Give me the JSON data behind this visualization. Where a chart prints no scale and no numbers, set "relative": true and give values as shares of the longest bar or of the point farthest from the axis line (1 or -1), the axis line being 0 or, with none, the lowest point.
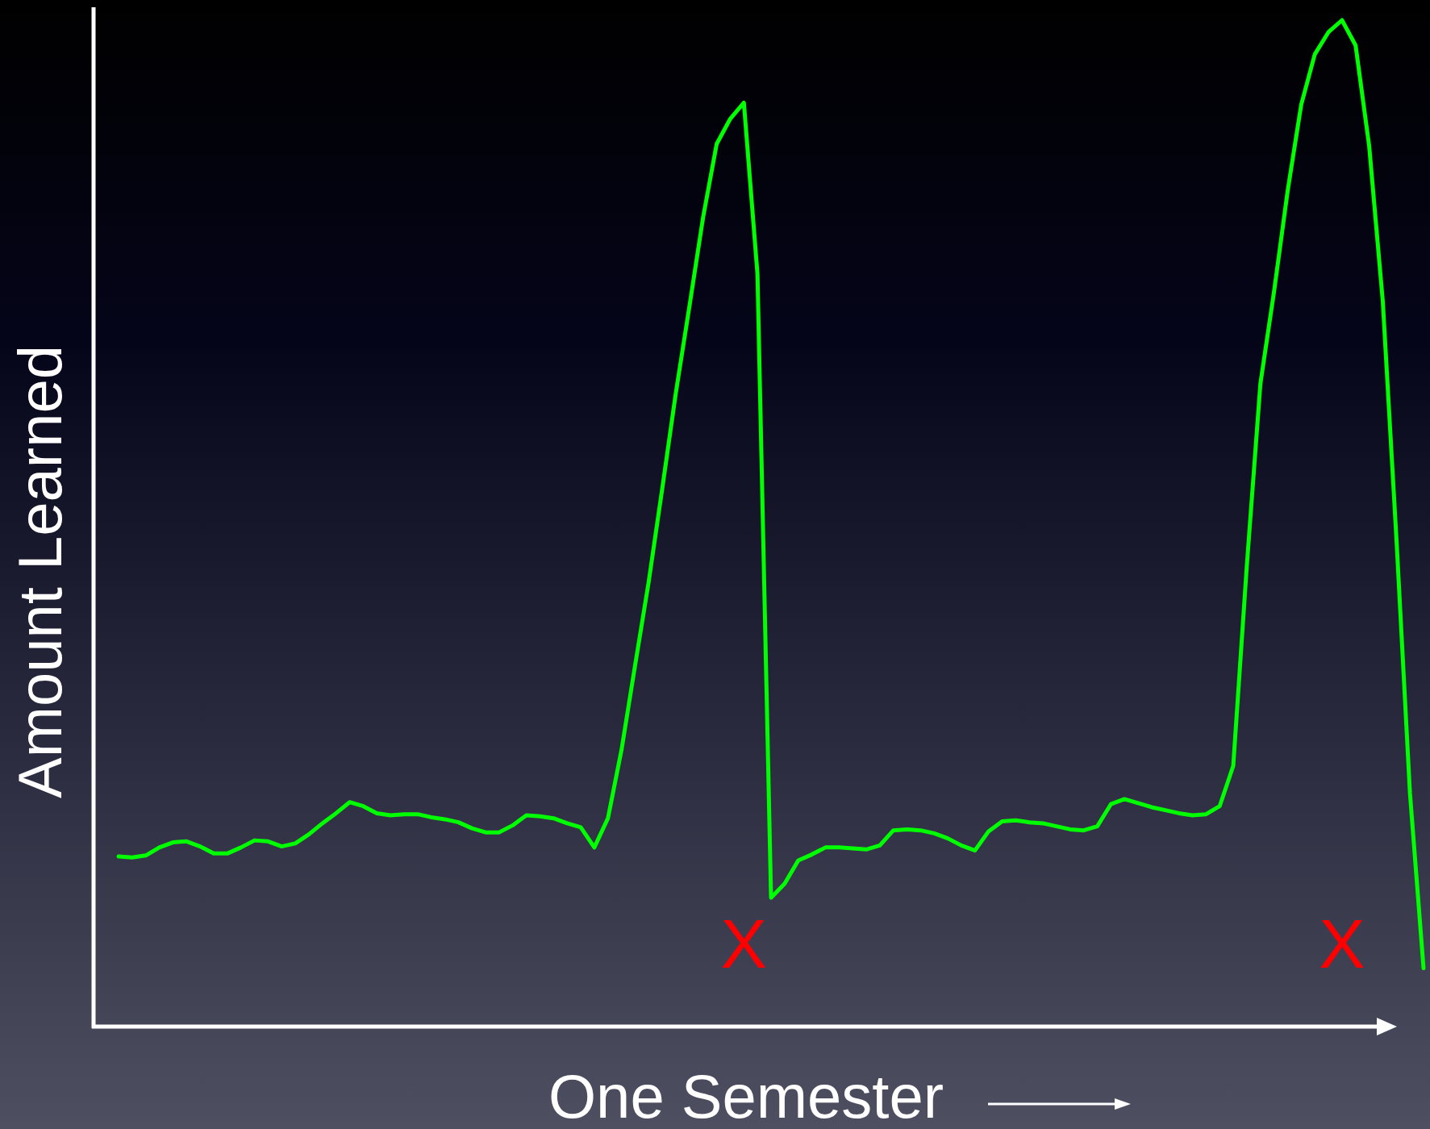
{
  "chart_data": {
    "type": "line",
    "relative": true,
    "xlabel": "One Semester",
    "ylabel": "Amount Learned",
    "annotations": [
      "X",
      "X"
    ],
    "categories": [
      null,
      null,
      null,
      null,
      null,
      null,
      null,
      null,
      null,
      null,
      null,
      null,
      null,
      null,
      null,
      null,
      null,
      null,
      null,
      null,
      null,
      null,
      null,
      null,
      null,
      null,
      null,
      null,
      null,
      null,
      null,
      null,
      null,
      null,
      null,
      null,
      null,
      null,
      null,
      null,
      null,
      null,
      null,
      null,
      null,
      null,
      null,
      null,
      null,
      null,
      null,
      null,
      null,
      null,
      null,
      null,
      null,
      null,
      null,
      null,
      null,
      null,
      null,
      null,
      null,
      null,
      null,
      null,
      null,
      null,
      null,
      null,
      null,
      null,
      null,
      null,
      null,
      null,
      null,
      null,
      null,
      null,
      null,
      null,
      null,
      null,
      null,
      null,
      null,
      null,
      null,
      null,
      null,
      null,
      null,
      null,
      null
    ],
    "series": [
      {
        "color": "#00ff00",
        "values": [
          0.169,
          0.168,
          0.17,
          0.178,
          0.183,
          0.184,
          0.179,
          0.172,
          0.172,
          0.178,
          0.185,
          0.184,
          0.179,
          0.182,
          0.191,
          0.202,
          0.212,
          0.223,
          0.219,
          0.212,
          0.21,
          0.211,
          0.211,
          0.208,
          0.206,
          0.203,
          0.197,
          0.193,
          0.193,
          0.2,
          0.21,
          0.209,
          0.207,
          0.202,
          0.198,
          0.178,
          0.207,
          0.275,
          0.359,
          0.442,
          0.535,
          0.63,
          0.716,
          0.804,
          0.877,
          0.902,
          0.918,
          0.748,
          0.128,
          0.142,
          0.165,
          0.171,
          0.178,
          0.178,
          0.177,
          0.176,
          0.18,
          0.195,
          0.196,
          0.195,
          0.192,
          0.187,
          0.18,
          0.175,
          0.194,
          0.204,
          0.205,
          0.203,
          0.202,
          0.199,
          0.196,
          0.195,
          0.199,
          0.221,
          0.226,
          0.222,
          0.218,
          0.215,
          0.212,
          0.21,
          0.211,
          0.219,
          0.259,
          0.458,
          0.639,
          0.73,
          0.83,
          0.916,
          0.966,
          0.988,
          1.0,
          0.975,
          0.875,
          0.721,
          0.486,
          0.232,
          0.058
        ]
      }
    ]
  }
}
